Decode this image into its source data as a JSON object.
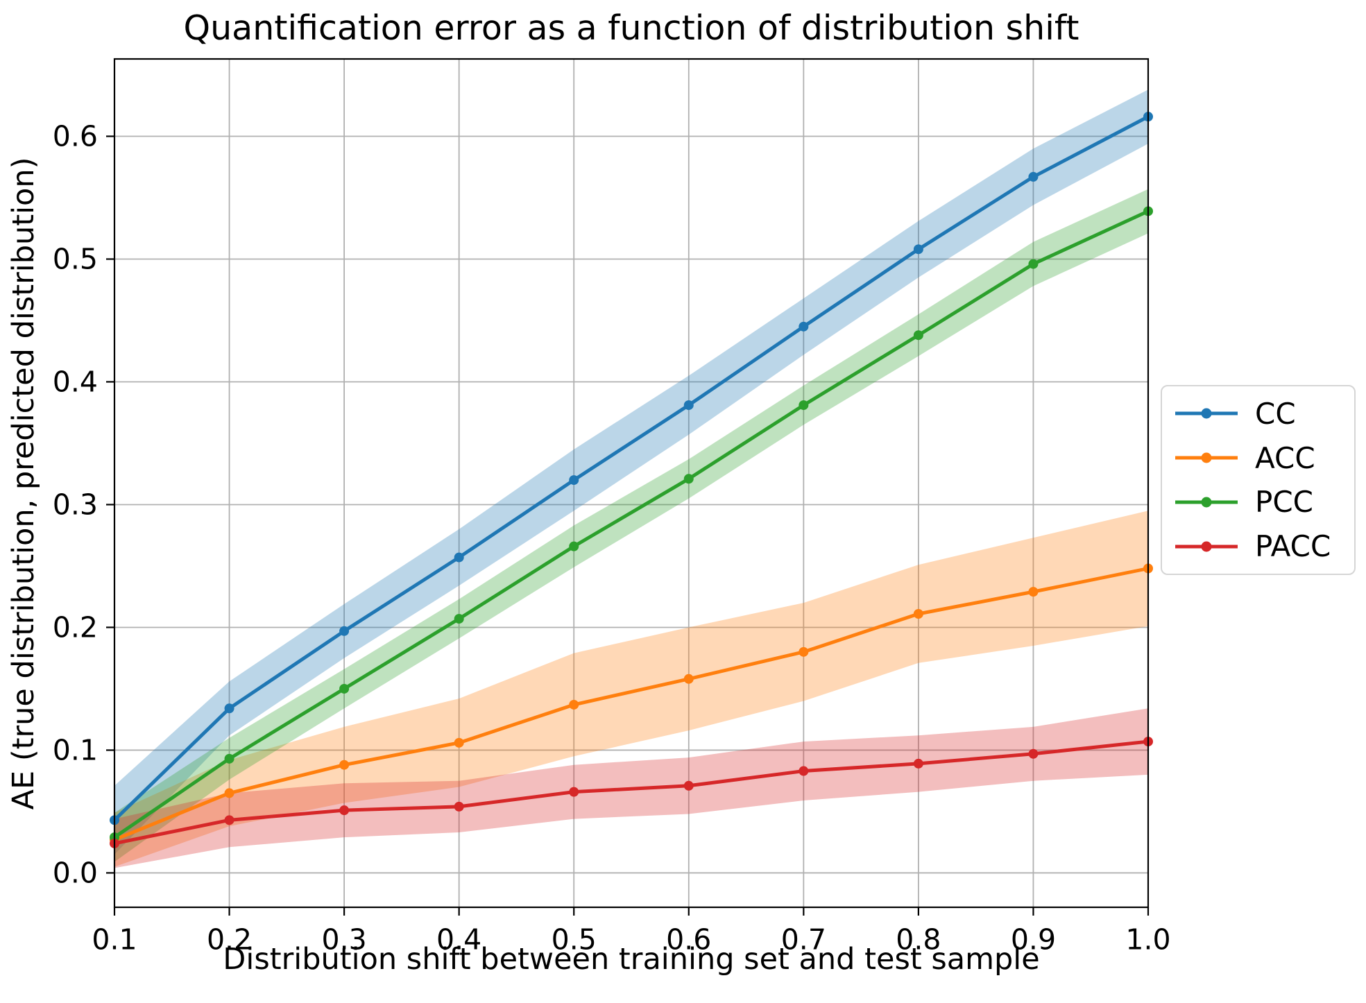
{
  "title": "Quantification error as a function of distribution shift",
  "x_axis_label": "Distribution shift between training set and test sample",
  "y_axis_label": "AE (true distribution, predicted distribution)",
  "chart_data": {
    "type": "line",
    "title": "Quantification error as a function of distribution shift",
    "xlabel": "Distribution shift between training set and test sample",
    "ylabel": "AE (true distribution, predicted distribution)",
    "x": [
      0.1,
      0.2,
      0.3,
      0.4,
      0.5,
      0.6,
      0.7,
      0.8,
      0.9,
      1.0
    ],
    "x_ticks": [
      "0.1",
      "0.2",
      "0.3",
      "0.4",
      "0.5",
      "0.6",
      "0.7",
      "0.8",
      "0.9",
      "1.0"
    ],
    "y_ticks": [
      "0.0",
      "0.1",
      "0.2",
      "0.3",
      "0.4",
      "0.5",
      "0.6"
    ],
    "xlim": [
      0.1,
      1.0
    ],
    "ylim": [
      -0.028,
      0.663
    ],
    "grid": true,
    "legend_position": "center right, outside axes",
    "band_opacity": 0.3,
    "series": [
      {
        "name": "CC",
        "color": "#1f77b4",
        "values": [
          0.043,
          0.134,
          0.197,
          0.257,
          0.32,
          0.381,
          0.445,
          0.508,
          0.567,
          0.616
        ],
        "band_lower": [
          0.015,
          0.112,
          0.175,
          0.234,
          0.295,
          0.357,
          0.422,
          0.485,
          0.544,
          0.594
        ],
        "band_upper": [
          0.071,
          0.156,
          0.219,
          0.28,
          0.345,
          0.405,
          0.468,
          0.531,
          0.59,
          0.638
        ]
      },
      {
        "name": "ACC",
        "color": "#ff7f0e",
        "values": [
          0.027,
          0.065,
          0.088,
          0.106,
          0.137,
          0.158,
          0.18,
          0.211,
          0.229,
          0.248
        ],
        "band_lower": [
          0.005,
          0.038,
          0.057,
          0.07,
          0.095,
          0.116,
          0.14,
          0.171,
          0.185,
          0.201
        ],
        "band_upper": [
          0.049,
          0.092,
          0.119,
          0.142,
          0.179,
          0.2,
          0.22,
          0.251,
          0.273,
          0.295
        ]
      },
      {
        "name": "PCC",
        "color": "#2ca02c",
        "values": [
          0.029,
          0.093,
          0.15,
          0.207,
          0.266,
          0.321,
          0.381,
          0.438,
          0.496,
          0.539
        ],
        "band_lower": [
          0.009,
          0.076,
          0.134,
          0.191,
          0.249,
          0.305,
          0.365,
          0.421,
          0.478,
          0.521
        ],
        "band_upper": [
          0.049,
          0.11,
          0.166,
          0.223,
          0.283,
          0.337,
          0.397,
          0.455,
          0.514,
          0.557
        ]
      },
      {
        "name": "PACC",
        "color": "#d62728",
        "values": [
          0.024,
          0.043,
          0.051,
          0.054,
          0.066,
          0.071,
          0.083,
          0.089,
          0.097,
          0.107
        ],
        "band_lower": [
          0.004,
          0.021,
          0.029,
          0.033,
          0.044,
          0.048,
          0.059,
          0.066,
          0.075,
          0.08
        ],
        "band_upper": [
          0.044,
          0.065,
          0.073,
          0.075,
          0.088,
          0.094,
          0.107,
          0.112,
          0.119,
          0.134
        ]
      }
    ]
  },
  "legend": {
    "items": [
      {
        "label": "CC",
        "color": "#1f77b4"
      },
      {
        "label": "ACC",
        "color": "#ff7f0e"
      },
      {
        "label": "PCC",
        "color": "#2ca02c"
      },
      {
        "label": "PACC",
        "color": "#d62728"
      }
    ]
  },
  "style": {
    "grid_color": "#b0b0b0",
    "spine_color": "#000000",
    "background": "#ffffff",
    "legend_border": "#d5d5d5"
  }
}
